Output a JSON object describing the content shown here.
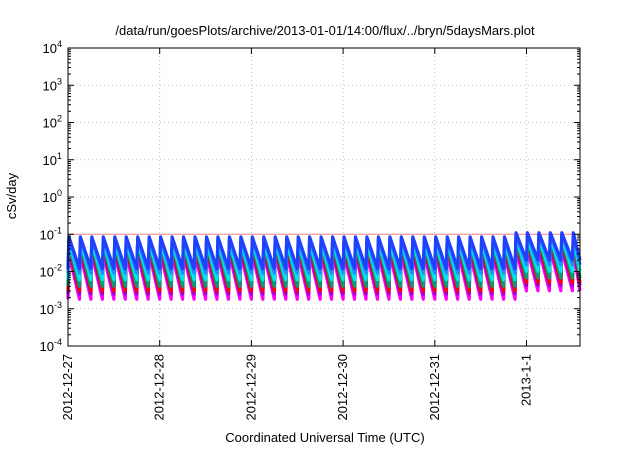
{
  "chart_data": {
    "type": "line",
    "title": "/data/run/goesPlots/archive/2013-01-01/14:00/flux/../bryn/5daysMars.plot",
    "xlabel": "Coordinated Universal Time (UTC)",
    "ylabel": "cSv/day",
    "yscale": "log",
    "ylim": [
      0.0001,
      10000
    ],
    "xlim": [
      "2012-12-27",
      "2013-01-01 14:00"
    ],
    "x_ticks": [
      "2012-12-27",
      "2012-12-28",
      "2012-12-29",
      "2012-12-30",
      "2012-12-31",
      "2013-1-1"
    ],
    "y_ticks": [
      {
        "base": "10",
        "exp": "4"
      },
      {
        "base": "10",
        "exp": "3"
      },
      {
        "base": "10",
        "exp": "2"
      },
      {
        "base": "10",
        "exp": "1"
      },
      {
        "base": "10",
        "exp": "0"
      },
      {
        "base": "10",
        "exp": "-1"
      },
      {
        "base": "10",
        "exp": "-2"
      },
      {
        "base": "10",
        "exp": "-3"
      },
      {
        "base": "10",
        "exp": "-4"
      }
    ],
    "grid": true,
    "reference_line": {
      "y": 0.1,
      "color": "#ff8080"
    },
    "series_profile": {
      "description_free": true,
      "period_hours": 3,
      "late_segment_start": "2012-12-31 19:00",
      "normal_peak": 0.085,
      "late_peak": 0.11
    },
    "series": [
      {
        "color": "#ff00ff",
        "peak": 0.03,
        "trough": 0.0018
      },
      {
        "color": "#9400d3",
        "peak": 0.04,
        "trough": 0.0025
      },
      {
        "color": "#ff0000",
        "peak": 0.05,
        "trough": 0.003
      },
      {
        "color": "#009e73",
        "peak": 0.058,
        "trough": 0.004
      },
      {
        "color": "#00e5ee",
        "peak": 0.065,
        "trough": 0.006
      },
      {
        "color": "#1e90ff",
        "peak": 0.075,
        "trough": 0.009
      },
      {
        "color": "#2040ff",
        "peak": 0.085,
        "trough": 0.012
      }
    ]
  }
}
